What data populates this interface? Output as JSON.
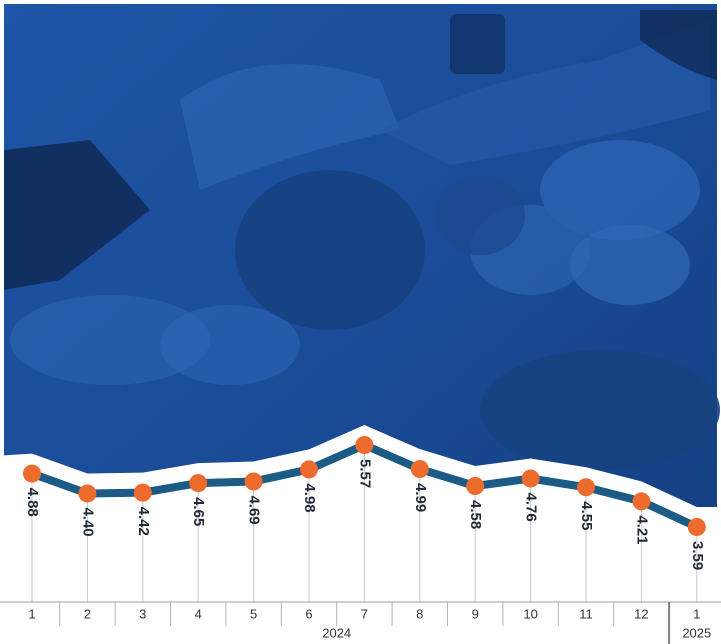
{
  "chart_data": {
    "type": "line",
    "groups": [
      {
        "label": "2024",
        "categories": [
          "1",
          "2",
          "3",
          "4",
          "5",
          "6",
          "7",
          "8",
          "9",
          "10",
          "11",
          "12"
        ]
      },
      {
        "label": "2025",
        "categories": [
          "1"
        ]
      }
    ],
    "series": [
      {
        "color": "#1b5b86",
        "marker_color": "#ec6b2d",
        "values": [
          4.88,
          4.4,
          4.42,
          4.65,
          4.69,
          4.98,
          5.57,
          4.99,
          4.58,
          4.76,
          4.55,
          4.21,
          3.59
        ],
        "value_labels": [
          "4.88",
          "4.40",
          "4.42",
          "4.65",
          "4.69",
          "4.98",
          "5.57",
          "4.99",
          "4.58",
          "4.76",
          "4.55",
          "4.21",
          "3.59"
        ]
      }
    ]
  }
}
